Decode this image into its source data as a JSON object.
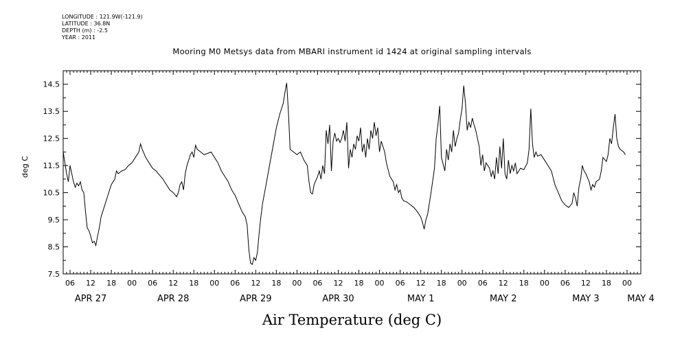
{
  "header": {
    "longitude": "LONGITUDE : 121.9W(-121.9)",
    "latitude": "LATITUDE : 36.8N",
    "depth": "DEPTH (m) : -2.5",
    "year": "YEAR : 2011"
  },
  "chart_data": {
    "type": "line",
    "title": "Mooring M0 Metsys data from MBARI instrument id 1424 at original sampling intervals",
    "xlabel": "Air Temperature (deg C)",
    "ylabel": "deg C",
    "ylim": [
      7.5,
      15.0
    ],
    "yticks": [
      7.5,
      8.5,
      9.5,
      10.5,
      11.5,
      12.5,
      13.5,
      14.5
    ],
    "y_tick_labels": [
      "7.5",
      "8.5",
      "9.5",
      "10.5",
      "11.5",
      "12.5",
      "13.5",
      "14.5"
    ],
    "xlim_hours": [
      4,
      172
    ],
    "x_time_labels": [
      {
        "h": 6,
        "label": "06"
      },
      {
        "h": 12,
        "label": "12"
      },
      {
        "h": 18,
        "label": "18"
      },
      {
        "h": 24,
        "label": "00"
      },
      {
        "h": 30,
        "label": "06"
      },
      {
        "h": 36,
        "label": "12"
      },
      {
        "h": 42,
        "label": "18"
      },
      {
        "h": 48,
        "label": "00"
      },
      {
        "h": 54,
        "label": "06"
      },
      {
        "h": 60,
        "label": "12"
      },
      {
        "h": 66,
        "label": "18"
      },
      {
        "h": 72,
        "label": "00"
      },
      {
        "h": 78,
        "label": "06"
      },
      {
        "h": 84,
        "label": "12"
      },
      {
        "h": 90,
        "label": "18"
      },
      {
        "h": 96,
        "label": "00"
      },
      {
        "h": 102,
        "label": "06"
      },
      {
        "h": 108,
        "label": "12"
      },
      {
        "h": 114,
        "label": "18"
      },
      {
        "h": 120,
        "label": "00"
      },
      {
        "h": 126,
        "label": "06"
      },
      {
        "h": 132,
        "label": "12"
      },
      {
        "h": 138,
        "label": "18"
      },
      {
        "h": 144,
        "label": "00"
      },
      {
        "h": 150,
        "label": "06"
      },
      {
        "h": 156,
        "label": "12"
      },
      {
        "h": 162,
        "label": "18"
      },
      {
        "h": 168,
        "label": "00"
      }
    ],
    "x_date_labels": [
      {
        "h": 12,
        "label": "APR 27"
      },
      {
        "h": 36,
        "label": "APR 28"
      },
      {
        "h": 60,
        "label": "APR 29"
      },
      {
        "h": 84,
        "label": "APR 30"
      },
      {
        "h": 108,
        "label": "MAY  1"
      },
      {
        "h": 132,
        "label": "MAY  2"
      },
      {
        "h": 156,
        "label": "MAY  3"
      },
      {
        "h": 172,
        "label": "MAY  4"
      }
    ],
    "series": [
      {
        "color": "#000000",
        "points": [
          [
            4.0,
            12.0
          ],
          [
            4.5,
            11.6
          ],
          [
            5.0,
            11.2
          ],
          [
            5.5,
            10.9
          ],
          [
            6.0,
            11.5
          ],
          [
            6.5,
            11.2
          ],
          [
            7.0,
            10.9
          ],
          [
            7.5,
            10.7
          ],
          [
            8.0,
            10.85
          ],
          [
            8.5,
            10.75
          ],
          [
            9.0,
            10.9
          ],
          [
            9.5,
            10.6
          ],
          [
            10.0,
            10.5
          ],
          [
            10.5,
            9.8
          ],
          [
            11.0,
            9.2
          ],
          [
            11.5,
            9.1
          ],
          [
            12.0,
            8.9
          ],
          [
            12.5,
            8.65
          ],
          [
            13.0,
            8.7
          ],
          [
            13.5,
            8.55
          ],
          [
            14.0,
            8.9
          ],
          [
            14.5,
            9.2
          ],
          [
            15.0,
            9.6
          ],
          [
            16.0,
            10.0
          ],
          [
            17.0,
            10.4
          ],
          [
            18.0,
            10.8
          ],
          [
            19.0,
            11.0
          ],
          [
            19.5,
            11.3
          ],
          [
            20.0,
            11.2
          ],
          [
            21.0,
            11.3
          ],
          [
            22.0,
            11.35
          ],
          [
            23.0,
            11.5
          ],
          [
            24.0,
            11.6
          ],
          [
            25.0,
            11.8
          ],
          [
            26.0,
            12.0
          ],
          [
            26.5,
            12.3
          ],
          [
            27.0,
            12.1
          ],
          [
            28.0,
            11.8
          ],
          [
            29.0,
            11.6
          ],
          [
            30.0,
            11.4
          ],
          [
            31.0,
            11.3
          ],
          [
            32.0,
            11.15
          ],
          [
            33.0,
            11.0
          ],
          [
            34.0,
            10.8
          ],
          [
            35.0,
            10.6
          ],
          [
            36.0,
            10.5
          ],
          [
            37.0,
            10.35
          ],
          [
            37.5,
            10.5
          ],
          [
            38.0,
            10.8
          ],
          [
            38.5,
            10.9
          ],
          [
            39.0,
            10.6
          ],
          [
            39.5,
            11.2
          ],
          [
            40.0,
            11.5
          ],
          [
            41.0,
            11.9
          ],
          [
            41.5,
            12.0
          ],
          [
            42.0,
            11.8
          ],
          [
            42.5,
            12.25
          ],
          [
            43.0,
            12.1
          ],
          [
            44.0,
            12.0
          ],
          [
            45.0,
            11.9
          ],
          [
            46.0,
            11.95
          ],
          [
            47.0,
            12.0
          ],
          [
            48.0,
            11.8
          ],
          [
            49.0,
            11.6
          ],
          [
            50.0,
            11.3
          ],
          [
            51.0,
            11.1
          ],
          [
            52.0,
            10.9
          ],
          [
            53.0,
            10.6
          ],
          [
            54.0,
            10.4
          ],
          [
            55.0,
            10.1
          ],
          [
            56.0,
            9.8
          ],
          [
            57.0,
            9.6
          ],
          [
            57.5,
            9.3
          ],
          [
            58.0,
            8.4
          ],
          [
            58.5,
            7.9
          ],
          [
            59.0,
            7.85
          ],
          [
            59.5,
            8.1
          ],
          [
            60.0,
            8.0
          ],
          [
            60.5,
            8.3
          ],
          [
            61.0,
            9.0
          ],
          [
            61.5,
            9.6
          ],
          [
            62.0,
            10.1
          ],
          [
            63.0,
            10.8
          ],
          [
            64.0,
            11.5
          ],
          [
            65.0,
            12.2
          ],
          [
            66.0,
            12.9
          ],
          [
            67.0,
            13.4
          ],
          [
            68.0,
            13.8
          ],
          [
            68.5,
            14.2
          ],
          [
            69.0,
            14.55
          ],
          [
            69.5,
            13.5
          ],
          [
            70.0,
            12.1
          ],
          [
            71.0,
            12.0
          ],
          [
            72.0,
            11.9
          ],
          [
            73.0,
            12.0
          ],
          [
            74.0,
            11.7
          ],
          [
            75.0,
            11.5
          ],
          [
            75.5,
            10.9
          ],
          [
            76.0,
            10.5
          ],
          [
            76.5,
            10.45
          ],
          [
            77.0,
            10.8
          ],
          [
            78.0,
            11.1
          ],
          [
            78.5,
            11.3
          ],
          [
            79.0,
            11.0
          ],
          [
            79.5,
            11.5
          ],
          [
            80.0,
            11.2
          ],
          [
            80.5,
            12.8
          ],
          [
            81.0,
            12.3
          ],
          [
            81.5,
            13.0
          ],
          [
            82.0,
            11.3
          ],
          [
            82.5,
            12.4
          ],
          [
            83.0,
            12.7
          ],
          [
            83.5,
            12.4
          ],
          [
            84.0,
            12.5
          ],
          [
            84.5,
            12.35
          ],
          [
            85.0,
            12.5
          ],
          [
            85.5,
            12.8
          ],
          [
            86.0,
            12.4
          ],
          [
            86.5,
            13.1
          ],
          [
            87.0,
            11.4
          ],
          [
            87.5,
            12.1
          ],
          [
            88.0,
            11.8
          ],
          [
            88.5,
            12.3
          ],
          [
            89.0,
            12.1
          ],
          [
            89.5,
            12.6
          ],
          [
            90.0,
            12.4
          ],
          [
            90.5,
            12.9
          ],
          [
            91.0,
            12.0
          ],
          [
            91.5,
            12.3
          ],
          [
            92.0,
            11.8
          ],
          [
            92.5,
            12.5
          ],
          [
            93.0,
            12.1
          ],
          [
            93.5,
            12.8
          ],
          [
            94.0,
            12.5
          ],
          [
            94.5,
            13.1
          ],
          [
            95.0,
            12.6
          ],
          [
            95.5,
            12.9
          ],
          [
            96.0,
            12.0
          ],
          [
            96.5,
            12.4
          ],
          [
            97.0,
            12.2
          ],
          [
            97.5,
            12.0
          ],
          [
            98.0,
            11.6
          ],
          [
            99.0,
            11.1
          ],
          [
            100.0,
            10.9
          ],
          [
            100.5,
            10.6
          ],
          [
            101.0,
            10.8
          ],
          [
            101.5,
            10.5
          ],
          [
            102.0,
            10.6
          ],
          [
            102.5,
            10.3
          ],
          [
            103.0,
            10.2
          ],
          [
            104.0,
            10.15
          ],
          [
            105.0,
            10.05
          ],
          [
            106.0,
            9.95
          ],
          [
            107.0,
            9.8
          ],
          [
            108.0,
            9.6
          ],
          [
            108.5,
            9.4
          ],
          [
            109.0,
            9.15
          ],
          [
            109.5,
            9.5
          ],
          [
            110.0,
            9.7
          ],
          [
            111.0,
            10.5
          ],
          [
            112.0,
            11.4
          ],
          [
            112.5,
            12.5
          ],
          [
            113.0,
            13.0
          ],
          [
            113.5,
            13.7
          ],
          [
            114.0,
            11.8
          ],
          [
            115.0,
            11.3
          ],
          [
            115.5,
            12.1
          ],
          [
            116.0,
            11.7
          ],
          [
            116.5,
            12.3
          ],
          [
            117.0,
            12.0
          ],
          [
            117.5,
            12.8
          ],
          [
            118.0,
            12.2
          ],
          [
            118.5,
            12.5
          ],
          [
            119.0,
            12.7
          ],
          [
            119.5,
            13.2
          ],
          [
            120.0,
            13.6
          ],
          [
            120.5,
            14.45
          ],
          [
            121.0,
            13.8
          ],
          [
            121.5,
            12.8
          ],
          [
            122.0,
            13.1
          ],
          [
            122.5,
            12.9
          ],
          [
            123.0,
            13.25
          ],
          [
            123.5,
            13.0
          ],
          [
            124.0,
            12.8
          ],
          [
            125.0,
            12.2
          ],
          [
            125.5,
            11.5
          ],
          [
            126.0,
            11.9
          ],
          [
            126.5,
            11.3
          ],
          [
            127.0,
            11.6
          ],
          [
            128.0,
            11.4
          ],
          [
            128.5,
            11.1
          ],
          [
            129.0,
            11.3
          ],
          [
            129.5,
            11.0
          ],
          [
            130.0,
            11.8
          ],
          [
            130.5,
            11.2
          ],
          [
            131.0,
            12.2
          ],
          [
            131.5,
            11.4
          ],
          [
            132.0,
            12.5
          ],
          [
            132.5,
            11.2
          ],
          [
            133.0,
            11.0
          ],
          [
            133.5,
            11.7
          ],
          [
            134.0,
            11.2
          ],
          [
            134.5,
            11.5
          ],
          [
            135.0,
            11.3
          ],
          [
            135.5,
            11.6
          ],
          [
            136.0,
            11.2
          ],
          [
            137.0,
            11.4
          ],
          [
            138.0,
            11.35
          ],
          [
            139.0,
            11.6
          ],
          [
            139.5,
            12.1
          ],
          [
            140.0,
            13.6
          ],
          [
            140.5,
            12.3
          ],
          [
            141.0,
            11.8
          ],
          [
            141.5,
            12.0
          ],
          [
            142.0,
            11.85
          ],
          [
            143.0,
            11.9
          ],
          [
            144.0,
            11.7
          ],
          [
            145.0,
            11.5
          ],
          [
            146.0,
            11.3
          ],
          [
            147.0,
            10.8
          ],
          [
            148.0,
            10.5
          ],
          [
            149.0,
            10.2
          ],
          [
            150.0,
            10.05
          ],
          [
            151.0,
            9.95
          ],
          [
            152.0,
            10.1
          ],
          [
            152.5,
            10.5
          ],
          [
            153.0,
            10.3
          ],
          [
            153.5,
            10.0
          ],
          [
            154.0,
            10.7
          ],
          [
            154.5,
            11.0
          ],
          [
            155.0,
            11.5
          ],
          [
            155.5,
            11.3
          ],
          [
            156.0,
            11.2
          ],
          [
            157.0,
            10.9
          ],
          [
            157.5,
            10.6
          ],
          [
            158.0,
            10.8
          ],
          [
            158.5,
            10.7
          ],
          [
            159.0,
            10.9
          ],
          [
            160.0,
            11.0
          ],
          [
            160.5,
            11.3
          ],
          [
            161.0,
            11.8
          ],
          [
            162.0,
            11.65
          ],
          [
            162.5,
            11.9
          ],
          [
            163.0,
            12.5
          ],
          [
            163.5,
            12.3
          ],
          [
            164.0,
            12.9
          ],
          [
            164.5,
            13.4
          ],
          [
            165.0,
            12.5
          ],
          [
            165.5,
            12.2
          ],
          [
            166.0,
            12.1
          ],
          [
            167.0,
            12.0
          ],
          [
            167.5,
            11.9
          ]
        ]
      }
    ]
  }
}
